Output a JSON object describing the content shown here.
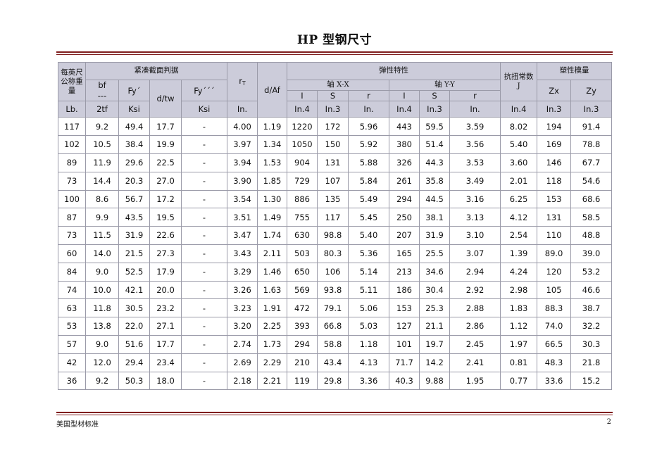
{
  "title": "HP 型钢尺寸",
  "footer": {
    "left": "美国型材标准",
    "page": "2"
  },
  "headers": {
    "weight": "每英尺公称重量",
    "compact": "紧凑截面判据",
    "bf": "bf",
    "dash": "---",
    "twotf": "2tf",
    "fy1": "Fy´",
    "dtw": "d/tw",
    "fy3": "Fy´´´",
    "rT": "r",
    "rT_sub": "T",
    "daf": "d/Af",
    "elastic": "弹性特性",
    "axis_x": "轴 X-X",
    "axis_y": "轴 Y-Y",
    "I": "I",
    "S": "S",
    "r": "r",
    "torsion": "抗扭常数",
    "J": "J",
    "plastic": "塑性模量",
    "zx": "Zx",
    "zy": "Zy"
  },
  "units": {
    "lb": "Lb.",
    "ksi1": "Ksi",
    "ksi2": "Ksi",
    "in": "In.",
    "in4_x": "In.4",
    "in3_x": "In.3",
    "in_x": "In.",
    "in4_y": "In.4",
    "in3_y": "In.3",
    "in_y": "In.",
    "in4_j": "In.4",
    "in3_zx": "In.3",
    "in3_zy": "In.3"
  },
  "rows": [
    [
      "117",
      "9.2",
      "49.4",
      "17.7",
      "-",
      "4.00",
      "1.19",
      "1220",
      "172",
      "5.96",
      "443",
      "59.5",
      "3.59",
      "8.02",
      "194",
      "91.4"
    ],
    [
      "102",
      "10.5",
      "38.4",
      "19.9",
      "-",
      "3.97",
      "1.34",
      "1050",
      "150",
      "5.92",
      "380",
      "51.4",
      "3.56",
      "5.40",
      "169",
      "78.8"
    ],
    [
      "89",
      "11.9",
      "29.6",
      "22.5",
      "-",
      "3.94",
      "1.53",
      "904",
      "131",
      "5.88",
      "326",
      "44.3",
      "3.53",
      "3.60",
      "146",
      "67.7"
    ],
    [
      "73",
      "14.4",
      "20.3",
      "27.0",
      "-",
      "3.90",
      "1.85",
      "729",
      "107",
      "5.84",
      "261",
      "35.8",
      "3.49",
      "2.01",
      "118",
      "54.6"
    ],
    [
      "100",
      "8.6",
      "56.7",
      "17.2",
      "-",
      "3.54",
      "1.30",
      "886",
      "135",
      "5.49",
      "294",
      "44.5",
      "3.16",
      "6.25",
      "153",
      "68.6"
    ],
    [
      "87",
      "9.9",
      "43.5",
      "19.5",
      "-",
      "3.51",
      "1.49",
      "755",
      "117",
      "5.45",
      "250",
      "38.1",
      "3.13",
      "4.12",
      "131",
      "58.5"
    ],
    [
      "73",
      "11.5",
      "31.9",
      "22.6",
      "-",
      "3.47",
      "1.74",
      "630",
      "98.8",
      "5.40",
      "207",
      "31.9",
      "3.10",
      "2.54",
      "110",
      "48.8"
    ],
    [
      "60",
      "14.0",
      "21.5",
      "27.3",
      "-",
      "3.43",
      "2.11",
      "503",
      "80.3",
      "5.36",
      "165",
      "25.5",
      "3.07",
      "1.39",
      "89.0",
      "39.0"
    ],
    [
      "84",
      "9.0",
      "52.5",
      "17.9",
      "-",
      "3.29",
      "1.46",
      "650",
      "106",
      "5.14",
      "213",
      "34.6",
      "2.94",
      "4.24",
      "120",
      "53.2"
    ],
    [
      "74",
      "10.0",
      "42.1",
      "20.0",
      "-",
      "3.26",
      "1.63",
      "569",
      "93.8",
      "5.11",
      "186",
      "30.4",
      "2.92",
      "2.98",
      "105",
      "46.6"
    ],
    [
      "63",
      "11.8",
      "30.5",
      "23.2",
      "-",
      "3.23",
      "1.91",
      "472",
      "79.1",
      "5.06",
      "153",
      "25.3",
      "2.88",
      "1.83",
      "88.3",
      "38.7"
    ],
    [
      "53",
      "13.8",
      "22.0",
      "27.1",
      "-",
      "3.20",
      "2.25",
      "393",
      "66.8",
      "5.03",
      "127",
      "21.1",
      "2.86",
      "1.12",
      "74.0",
      "32.2"
    ],
    [
      "57",
      "9.0",
      "51.6",
      "17.7",
      "-",
      "2.74",
      "1.73",
      "294",
      "58.8",
      "1.18",
      "101",
      "19.7",
      "2.45",
      "1.97",
      "66.5",
      "30.3"
    ],
    [
      "42",
      "12.0",
      "29.4",
      "23.4",
      "-",
      "2.69",
      "2.29",
      "210",
      "43.4",
      "4.13",
      "71.7",
      "14.2",
      "2.41",
      "0.81",
      "48.3",
      "21.8"
    ],
    [
      "36",
      "9.2",
      "50.3",
      "18.0",
      "-",
      "2.18",
      "2.21",
      "119",
      "29.8",
      "3.36",
      "40.3",
      "9.88",
      "1.95",
      "0.77",
      "33.6",
      "15.2"
    ]
  ]
}
